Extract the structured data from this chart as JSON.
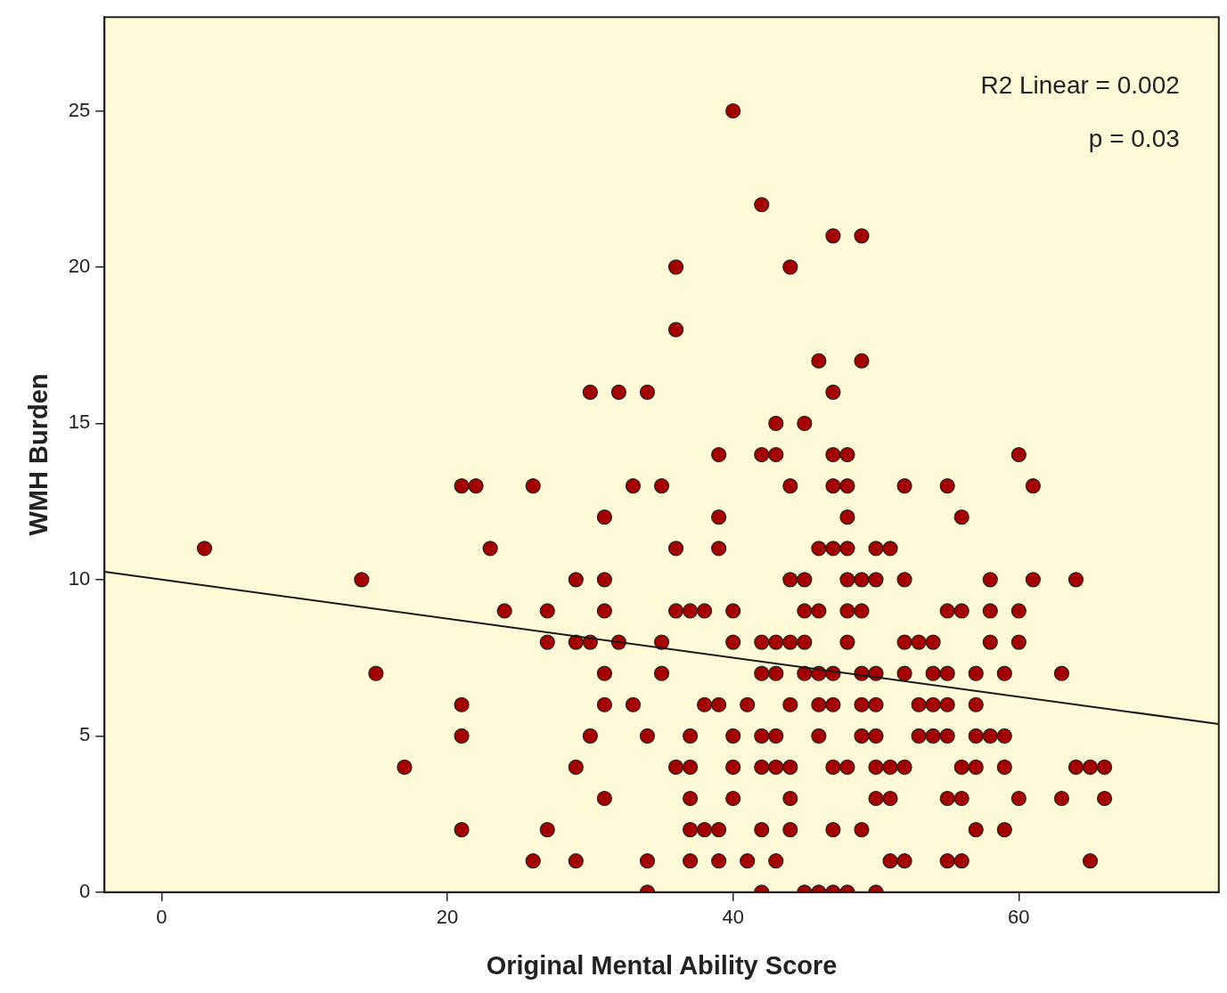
{
  "chart_data": {
    "type": "scatter",
    "xlabel": "Original Mental Ability Score",
    "ylabel": "WMH Burden",
    "xlim": [
      -4,
      74
    ],
    "xticks": [
      0,
      20,
      40,
      60
    ],
    "ylim": [
      0,
      28
    ],
    "yticks": [
      0,
      5,
      10,
      15,
      20,
      25
    ],
    "grid": false,
    "legend": false,
    "marker": "circle",
    "annotations": [
      "R2 Linear = 0.002",
      "p = 0.03"
    ],
    "series": [
      {
        "color": "#a50000",
        "x": [
          40,
          42,
          47,
          49,
          36,
          44,
          36,
          46,
          49,
          30,
          32,
          34,
          47,
          43,
          45,
          39,
          42,
          43,
          47,
          48,
          60,
          21,
          22,
          26,
          33,
          35,
          44,
          47,
          48,
          52,
          55,
          61,
          31,
          39,
          48,
          56,
          3,
          23,
          36,
          39,
          46,
          47,
          48,
          50,
          51,
          14,
          29,
          31,
          44,
          45,
          48,
          49,
          50,
          52,
          58,
          61,
          64,
          24,
          27,
          31,
          36,
          37,
          38,
          40,
          45,
          46,
          48,
          49,
          55,
          56,
          58,
          60,
          27,
          29,
          30,
          32,
          35,
          40,
          42,
          43,
          44,
          45,
          48,
          52,
          53,
          54,
          58,
          60,
          15,
          31,
          35,
          42,
          43,
          45,
          46,
          47,
          49,
          50,
          52,
          54,
          55,
          57,
          59,
          63,
          21,
          31,
          33,
          38,
          39,
          41,
          44,
          46,
          47,
          49,
          50,
          53,
          54,
          55,
          57,
          21,
          30,
          34,
          37,
          40,
          42,
          43,
          46,
          49,
          50,
          53,
          54,
          55,
          57,
          58,
          59,
          17,
          29,
          36,
          37,
          40,
          42,
          43,
          44,
          47,
          48,
          50,
          51,
          52,
          56,
          57,
          59,
          64,
          65,
          66,
          31,
          37,
          40,
          44,
          50,
          51,
          55,
          56,
          60,
          63,
          66,
          21,
          27,
          37,
          38,
          39,
          42,
          44,
          47,
          49,
          57,
          59,
          26,
          29,
          34,
          37,
          39,
          41,
          43,
          51,
          52,
          55,
          56,
          65,
          34,
          42,
          45,
          46,
          47,
          48,
          50
        ],
        "values": [
          25,
          22,
          21,
          21,
          20,
          20,
          18,
          17,
          17,
          16,
          16,
          16,
          16,
          15,
          15,
          14,
          14,
          14,
          14,
          14,
          14,
          13,
          13,
          13,
          13,
          13,
          13,
          13,
          13,
          13,
          13,
          13,
          12,
          12,
          12,
          12,
          11,
          11,
          11,
          11,
          11,
          11,
          11,
          11,
          11,
          10,
          10,
          10,
          10,
          10,
          10,
          10,
          10,
          10,
          10,
          10,
          10,
          9,
          9,
          9,
          9,
          9,
          9,
          9,
          9,
          9,
          9,
          9,
          9,
          9,
          9,
          9,
          8,
          8,
          8,
          8,
          8,
          8,
          8,
          8,
          8,
          8,
          8,
          8,
          8,
          8,
          8,
          8,
          7,
          7,
          7,
          7,
          7,
          7,
          7,
          7,
          7,
          7,
          7,
          7,
          7,
          7,
          7,
          7,
          6,
          6,
          6,
          6,
          6,
          6,
          6,
          6,
          6,
          6,
          6,
          6,
          6,
          6,
          6,
          5,
          5,
          5,
          5,
          5,
          5,
          5,
          5,
          5,
          5,
          5,
          5,
          5,
          5,
          5,
          5,
          4,
          4,
          4,
          4,
          4,
          4,
          4,
          4,
          4,
          4,
          4,
          4,
          4,
          4,
          4,
          4,
          4,
          4,
          4,
          3,
          3,
          3,
          3,
          3,
          3,
          3,
          3,
          3,
          3,
          3,
          2,
          2,
          2,
          2,
          2,
          2,
          2,
          2,
          2,
          2,
          2,
          1,
          1,
          1,
          1,
          1,
          1,
          1,
          1,
          1,
          1,
          1,
          1,
          0,
          0,
          0,
          0,
          0,
          0,
          0
        ]
      },
      {
        "type": "line",
        "color": "#1a1a1a",
        "marker": "none",
        "x": [
          -4,
          74
        ],
        "values": [
          10.25,
          5.38
        ]
      }
    ]
  }
}
